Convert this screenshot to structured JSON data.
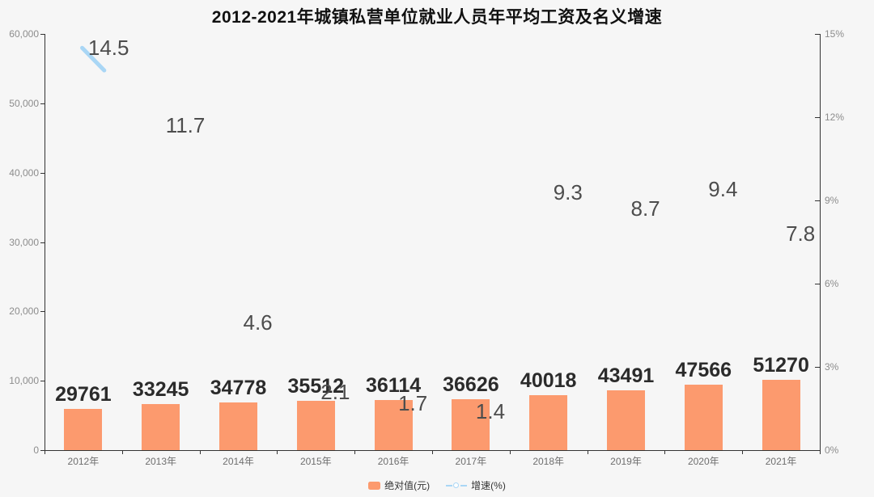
{
  "title": "2012-2021年城镇私营单位就业人员年平均工资及名义增速",
  "colors": {
    "bar": "#FC9A6E",
    "line": "#A9D6F5",
    "background": "#f6f6f6"
  },
  "legend": {
    "items": [
      {
        "label": "绝对值(元)",
        "type": "bar"
      },
      {
        "label": "增速(%)",
        "type": "line"
      }
    ]
  },
  "chart_data": {
    "type": "bar",
    "title": "2012-2021年城镇私营单位就业人员年平均工资及名义增速",
    "categories": [
      "2012年",
      "2013年",
      "2014年",
      "2015年",
      "2016年",
      "2017年",
      "2018年",
      "2019年",
      "2020年",
      "2021年"
    ],
    "series": [
      {
        "name": "绝对值(元)",
        "type": "bar",
        "color": "#FC9A6E",
        "values": [
          29761,
          33245,
          34778,
          35512,
          36114,
          36626,
          40018,
          43491,
          47566,
          51270
        ]
      },
      {
        "name": "增速(%)",
        "type": "line",
        "color": "#A9D6F5",
        "values": [
          14.5,
          11.7,
          4.6,
          2.1,
          1.7,
          1.4,
          9.3,
          8.7,
          9.4,
          7.8
        ]
      }
    ],
    "y_axis_left": {
      "min": 0,
      "max": 60000,
      "tick_labels": [
        "0",
        "10,000",
        "20,000",
        "30,000",
        "40,000",
        "50,000",
        "60,000"
      ]
    },
    "y_axis_right": {
      "min": 0,
      "max": 15,
      "tick_labels": [
        "0%",
        "3%",
        "6%",
        "9%",
        "12%",
        "15%"
      ]
    },
    "grid": false,
    "legend_position": "bottom"
  }
}
